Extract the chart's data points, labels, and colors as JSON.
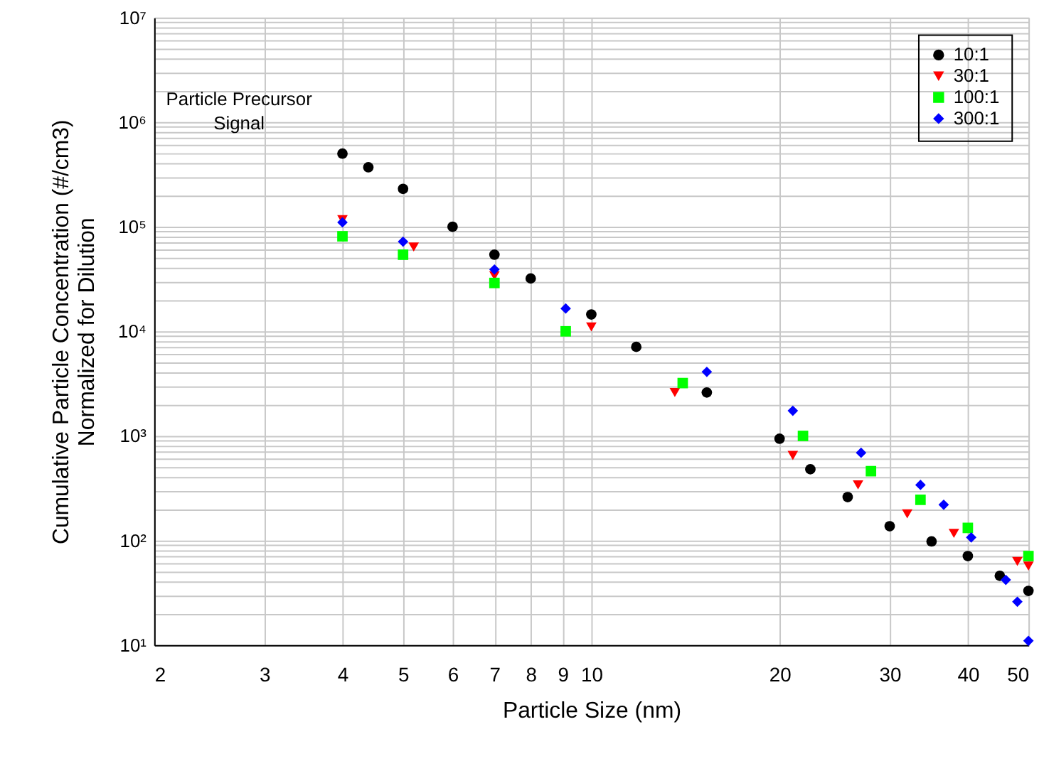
{
  "chart_data": {
    "type": "scatter",
    "xlabel": "Particle Size (nm)",
    "ylabel": "Cumulative Particle Concentration (#/cm3)\nNormalized for Dilution",
    "annotations": [
      "Particle Precursor\nSignal"
    ],
    "log": "xy",
    "grid": true,
    "legend": "top right",
    "xlim": [
      2,
      50
    ],
    "xticks": [
      2,
      3,
      4,
      5,
      6,
      7,
      8,
      9,
      10,
      20,
      30,
      40,
      50
    ],
    "ylim": [
      10,
      10000000
    ],
    "yticks": [
      {
        "value": 10,
        "label": "10¹"
      },
      {
        "value": 20,
        "label": null
      },
      {
        "value": 30,
        "label": null
      },
      {
        "value": 40,
        "label": null
      },
      {
        "value": 50,
        "label": null
      },
      {
        "value": 60,
        "label": null
      },
      {
        "value": 70,
        "label": null
      },
      {
        "value": 80,
        "label": null
      },
      {
        "value": 90,
        "label": null
      },
      {
        "value": 100,
        "label": "10²"
      },
      {
        "value": 200,
        "label": null
      },
      {
        "value": 300,
        "label": null
      },
      {
        "value": 400,
        "label": null
      },
      {
        "value": 500,
        "label": null
      },
      {
        "value": 600,
        "label": null
      },
      {
        "value": 700,
        "label": null
      },
      {
        "value": 800,
        "label": null
      },
      {
        "value": 900,
        "label": null
      },
      {
        "value": 1000,
        "label": "10³"
      },
      {
        "value": 2000,
        "label": null
      },
      {
        "value": 3000,
        "label": null
      },
      {
        "value": 4000,
        "label": null
      },
      {
        "value": 5000,
        "label": null
      },
      {
        "value": 6000,
        "label": null
      },
      {
        "value": 7000,
        "label": null
      },
      {
        "value": 8000,
        "label": null
      },
      {
        "value": 9000,
        "label": null
      },
      {
        "value": 10000,
        "label": "10⁴"
      },
      {
        "value": 20000,
        "label": null
      },
      {
        "value": 30000,
        "label": null
      },
      {
        "value": 40000,
        "label": null
      },
      {
        "value": 50000,
        "label": null
      },
      {
        "value": 60000,
        "label": null
      },
      {
        "value": 70000,
        "label": null
      },
      {
        "value": 80000,
        "label": null
      },
      {
        "value": 90000,
        "label": null
      },
      {
        "value": 100000,
        "label": "10⁵"
      },
      {
        "value": 200000,
        "label": null
      },
      {
        "value": 300000,
        "label": null
      },
      {
        "value": 400000,
        "label": null
      },
      {
        "value": 500000,
        "label": null
      },
      {
        "value": 600000,
        "label": null
      },
      {
        "value": 700000,
        "label": null
      },
      {
        "value": 800000,
        "label": null
      },
      {
        "value": 900000,
        "label": null
      },
      {
        "value": 1000000,
        "label": "10⁶"
      },
      {
        "value": 2000000,
        "label": null
      },
      {
        "value": 3000000,
        "label": null
      },
      {
        "value": 4000000,
        "label": null
      },
      {
        "value": 5000000,
        "label": null
      },
      {
        "value": 6000000,
        "label": null
      },
      {
        "value": 7000000,
        "label": null
      },
      {
        "value": 8000000,
        "label": null
      },
      {
        "value": 9000000,
        "label": null
      },
      {
        "value": 10000000,
        "label": "10⁷"
      }
    ],
    "series": [
      {
        "name": "10:1",
        "color": "#000000",
        "marker": "circle",
        "x": [
          4,
          4.4,
          5,
          6,
          7,
          8,
          10,
          11.8,
          15.3,
          20,
          22.4,
          25.7,
          30,
          35,
          40,
          45,
          50
        ],
        "values": [
          500000,
          370000,
          230000,
          100000,
          54000,
          32000,
          14500,
          7100,
          2600,
          940,
          480,
          260,
          137,
          98,
          71,
          46,
          33
        ]
      },
      {
        "name": "30:1",
        "color": "#ff0000",
        "marker": "triangle",
        "x": [
          4,
          5.2,
          7,
          10,
          13.6,
          21,
          26.7,
          32,
          38,
          48,
          50
        ],
        "values": [
          117000,
          64000,
          34000,
          11000,
          2600,
          650,
          340,
          180,
          117,
          63,
          57
        ]
      },
      {
        "name": "100:1",
        "color": "#00ff00",
        "marker": "square",
        "x": [
          4,
          5,
          7,
          9.1,
          14,
          21.8,
          28,
          33.6,
          40,
          50
        ],
        "values": [
          81000,
          54000,
          29000,
          10000,
          3200,
          1000,
          460,
          245,
          132,
          71
        ]
      },
      {
        "name": "300:1",
        "color": "#0000ff",
        "marker": "diamond",
        "x": [
          4,
          5,
          7,
          9.1,
          15.3,
          21,
          27,
          33.6,
          36.6,
          40.5,
          46,
          48,
          50
        ],
        "values": [
          110000,
          72000,
          39000,
          16500,
          4100,
          1740,
          690,
          340,
          220,
          107,
          42,
          26,
          11
        ]
      }
    ]
  }
}
